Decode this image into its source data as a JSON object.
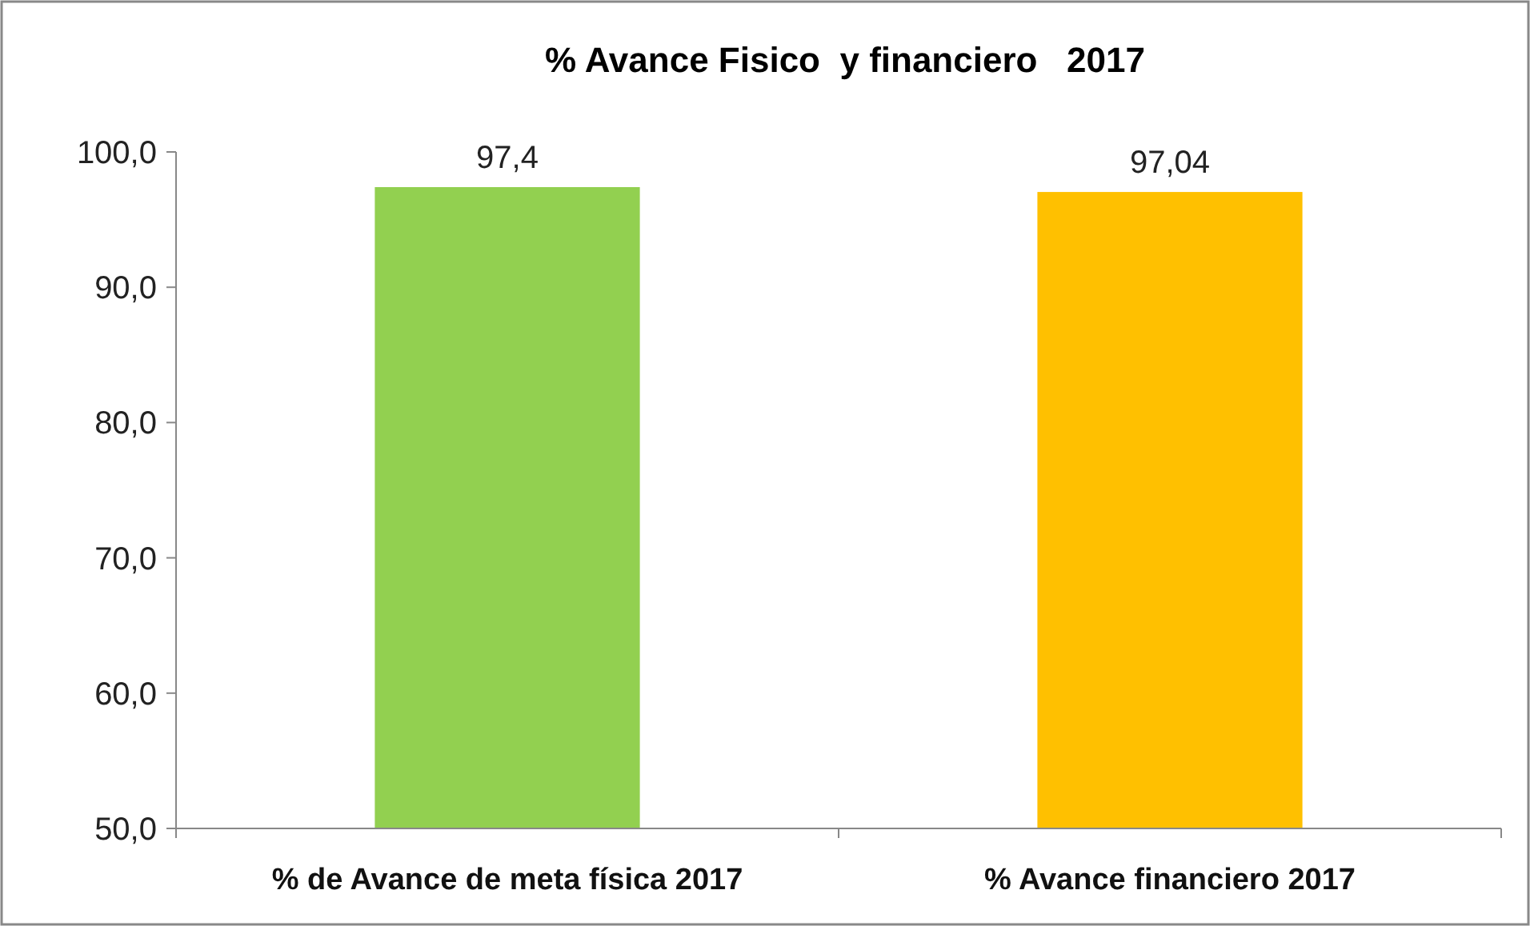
{
  "chart_data": {
    "type": "bar",
    "title": "% Avance Fisico  y financiero   2017",
    "categories": [
      "% de Avance de meta física 2017",
      "% Avance financiero 2017"
    ],
    "values": [
      97.4,
      97.04
    ],
    "colors": [
      "#92d050",
      "#ffc000"
    ],
    "value_labels": [
      "97,4",
      "97,04"
    ],
    "ylim": [
      50,
      100
    ],
    "yticks": [
      {
        "value": 50,
        "label": "50,0"
      },
      {
        "value": 60,
        "label": "60,0"
      },
      {
        "value": 70,
        "label": "70,0"
      },
      {
        "value": 80,
        "label": "80,0"
      },
      {
        "value": 90,
        "label": "90,0"
      },
      {
        "value": 100,
        "label": "100,0"
      }
    ],
    "grid": false
  }
}
